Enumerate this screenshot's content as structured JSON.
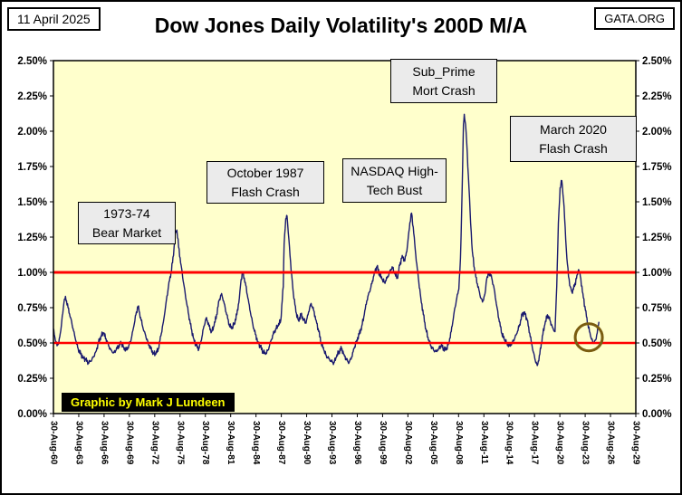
{
  "header": {
    "date": "11 April 2025",
    "title": "Dow Jones Daily Volatility's 200D M/A",
    "site": "GATA.ORG"
  },
  "credit": "Graphic by Mark J Lundeen",
  "annotations": [
    {
      "id": "bear-market",
      "lines": [
        "1973-74",
        "Bear Market"
      ]
    },
    {
      "id": "october-1987",
      "lines": [
        "October 1987",
        "Flash Crash"
      ]
    },
    {
      "id": "nasdaq-bust",
      "lines": [
        "NASDAQ High-",
        "Tech Bust"
      ]
    },
    {
      "id": "subprime",
      "lines": [
        "Sub_Prime",
        "Mort Crash"
      ]
    },
    {
      "id": "march-2020",
      "lines": [
        "March 2020",
        "Flash Crash"
      ]
    }
  ],
  "colors": {
    "plot_bg": "#FFFFCC",
    "series": "#1a1a6e",
    "reference": "#FF0000",
    "axis": "#000000",
    "highlight": "#7a5c10",
    "credit_bg": "#000000",
    "credit_text": "#ffff00"
  },
  "chart_data": {
    "type": "line",
    "title": "Dow Jones Daily Volatility's 200D M/A",
    "xlabel": "",
    "ylabel": "",
    "ylim": [
      0,
      2.5
    ],
    "y_tick_labels": [
      "0.00%",
      "0.25%",
      "0.50%",
      "0.75%",
      "1.00%",
      "1.25%",
      "1.50%",
      "1.75%",
      "2.00%",
      "2.25%",
      "2.50%"
    ],
    "y_tick_values": [
      0,
      0.25,
      0.5,
      0.75,
      1.0,
      1.25,
      1.5,
      1.75,
      2.0,
      2.25,
      2.5
    ],
    "x_range": [
      1960.67,
      2029.67
    ],
    "x_tick_labels": [
      "30-Aug-60",
      "30-Aug-63",
      "30-Aug-66",
      "30-Aug-69",
      "30-Aug-72",
      "30-Aug-75",
      "30-Aug-78",
      "30-Aug-81",
      "30-Aug-84",
      "30-Aug-87",
      "30-Aug-90",
      "30-Aug-93",
      "30-Aug-96",
      "30-Aug-99",
      "30-Aug-02",
      "30-Aug-05",
      "30-Aug-08",
      "30-Aug-11",
      "30-Aug-14",
      "30-Aug-17",
      "30-Aug-20",
      "30-Aug-23",
      "30-Aug-26",
      "30-Aug-29"
    ],
    "x_tick_years": [
      1960.67,
      1963.67,
      1966.67,
      1969.67,
      1972.67,
      1975.67,
      1978.67,
      1981.67,
      1984.67,
      1987.67,
      1990.67,
      1993.67,
      1996.67,
      1999.67,
      2002.67,
      2005.67,
      2008.67,
      2011.67,
      2014.67,
      2017.67,
      2020.67,
      2023.67,
      2026.67,
      2029.67
    ],
    "grid": false,
    "legend": "none",
    "reference_lines": [
      {
        "value": 1.0,
        "color": "#FF0000",
        "width": 3
      },
      {
        "value": 0.5,
        "color": "#FF0000",
        "width": 2.4
      }
    ],
    "highlight_circle": {
      "x": 2024.1,
      "y": 0.54,
      "radius_px": 15,
      "color": "#7a5c10",
      "width": 3
    },
    "series": [
      {
        "name": "Dow Jones Daily Volatility 200D M/A",
        "color": "#1a1a6e",
        "points": [
          [
            1960.7,
            0.6
          ],
          [
            1960.9,
            0.52
          ],
          [
            1961.1,
            0.48
          ],
          [
            1961.3,
            0.5
          ],
          [
            1961.6,
            0.62
          ],
          [
            1961.9,
            0.78
          ],
          [
            1962.1,
            0.83
          ],
          [
            1962.4,
            0.75
          ],
          [
            1962.7,
            0.68
          ],
          [
            1963,
            0.6
          ],
          [
            1963.3,
            0.52
          ],
          [
            1963.6,
            0.46
          ],
          [
            1963.9,
            0.42
          ],
          [
            1964.2,
            0.4
          ],
          [
            1964.5,
            0.38
          ],
          [
            1964.8,
            0.36
          ],
          [
            1965.1,
            0.37
          ],
          [
            1965.4,
            0.4
          ],
          [
            1965.7,
            0.44
          ],
          [
            1966,
            0.5
          ],
          [
            1966.3,
            0.55
          ],
          [
            1966.6,
            0.57
          ],
          [
            1966.9,
            0.53
          ],
          [
            1967.2,
            0.48
          ],
          [
            1967.5,
            0.45
          ],
          [
            1967.8,
            0.43
          ],
          [
            1968.1,
            0.45
          ],
          [
            1968.4,
            0.48
          ],
          [
            1968.7,
            0.5
          ],
          [
            1969,
            0.47
          ],
          [
            1969.3,
            0.45
          ],
          [
            1969.6,
            0.48
          ],
          [
            1969.9,
            0.53
          ],
          [
            1970.2,
            0.62
          ],
          [
            1970.5,
            0.72
          ],
          [
            1970.7,
            0.76
          ],
          [
            1971,
            0.68
          ],
          [
            1971.3,
            0.6
          ],
          [
            1971.6,
            0.55
          ],
          [
            1971.9,
            0.5
          ],
          [
            1972.2,
            0.46
          ],
          [
            1972.5,
            0.43
          ],
          [
            1972.8,
            0.42
          ],
          [
            1973.1,
            0.46
          ],
          [
            1973.4,
            0.55
          ],
          [
            1973.7,
            0.65
          ],
          [
            1974,
            0.78
          ],
          [
            1974.3,
            0.9
          ],
          [
            1974.6,
            1.0
          ],
          [
            1974.9,
            1.12
          ],
          [
            1975.1,
            1.28
          ],
          [
            1975.3,
            1.3
          ],
          [
            1975.5,
            1.18
          ],
          [
            1975.8,
            1.05
          ],
          [
            1976.1,
            0.92
          ],
          [
            1976.4,
            0.8
          ],
          [
            1976.7,
            0.7
          ],
          [
            1977,
            0.6
          ],
          [
            1977.3,
            0.53
          ],
          [
            1977.6,
            0.48
          ],
          [
            1977.9,
            0.46
          ],
          [
            1978.2,
            0.52
          ],
          [
            1978.5,
            0.62
          ],
          [
            1978.8,
            0.68
          ],
          [
            1979.1,
            0.62
          ],
          [
            1979.4,
            0.58
          ],
          [
            1979.7,
            0.62
          ],
          [
            1980,
            0.7
          ],
          [
            1980.3,
            0.8
          ],
          [
            1980.6,
            0.85
          ],
          [
            1980.9,
            0.78
          ],
          [
            1981.2,
            0.7
          ],
          [
            1981.5,
            0.63
          ],
          [
            1981.8,
            0.6
          ],
          [
            1982.1,
            0.64
          ],
          [
            1982.4,
            0.7
          ],
          [
            1982.7,
            0.82
          ],
          [
            1982.9,
            0.95
          ],
          [
            1983.1,
            1.0
          ],
          [
            1983.4,
            0.93
          ],
          [
            1983.7,
            0.82
          ],
          [
            1984,
            0.72
          ],
          [
            1984.3,
            0.63
          ],
          [
            1984.6,
            0.56
          ],
          [
            1984.9,
            0.51
          ],
          [
            1985.2,
            0.47
          ],
          [
            1985.5,
            0.44
          ],
          [
            1985.8,
            0.42
          ],
          [
            1986.1,
            0.45
          ],
          [
            1986.4,
            0.51
          ],
          [
            1986.7,
            0.56
          ],
          [
            1987,
            0.6
          ],
          [
            1987.3,
            0.62
          ],
          [
            1987.6,
            0.66
          ],
          [
            1987.9,
            0.9
          ],
          [
            1988,
            1.2
          ],
          [
            1988.2,
            1.38
          ],
          [
            1988.35,
            1.4
          ],
          [
            1988.5,
            1.28
          ],
          [
            1988.7,
            1.12
          ],
          [
            1988.9,
            0.98
          ],
          [
            1989.1,
            0.85
          ],
          [
            1989.4,
            0.72
          ],
          [
            1989.7,
            0.66
          ],
          [
            1990,
            0.7
          ],
          [
            1990.3,
            0.67
          ],
          [
            1990.6,
            0.64
          ],
          [
            1990.9,
            0.72
          ],
          [
            1991.2,
            0.78
          ],
          [
            1991.5,
            0.73
          ],
          [
            1991.8,
            0.66
          ],
          [
            1992.1,
            0.58
          ],
          [
            1992.4,
            0.5
          ],
          [
            1992.7,
            0.45
          ],
          [
            1993,
            0.41
          ],
          [
            1993.3,
            0.39
          ],
          [
            1993.6,
            0.37
          ],
          [
            1993.9,
            0.36
          ],
          [
            1994.2,
            0.4
          ],
          [
            1994.5,
            0.44
          ],
          [
            1994.8,
            0.46
          ],
          [
            1995.1,
            0.42
          ],
          [
            1995.4,
            0.38
          ],
          [
            1995.7,
            0.36
          ],
          [
            1996,
            0.4
          ],
          [
            1996.3,
            0.46
          ],
          [
            1996.6,
            0.52
          ],
          [
            1996.9,
            0.56
          ],
          [
            1997.2,
            0.62
          ],
          [
            1997.5,
            0.7
          ],
          [
            1997.8,
            0.8
          ],
          [
            1998.1,
            0.86
          ],
          [
            1998.4,
            0.92
          ],
          [
            1998.7,
            1.0
          ],
          [
            1999,
            1.04
          ],
          [
            1999.3,
            0.99
          ],
          [
            1999.6,
            0.95
          ],
          [
            1999.9,
            0.93
          ],
          [
            2000.2,
            0.96
          ],
          [
            2000.5,
            1.0
          ],
          [
            2000.8,
            1.04
          ],
          [
            2001.1,
            0.99
          ],
          [
            2001.4,
            0.96
          ],
          [
            2001.7,
            1.05
          ],
          [
            2002,
            1.12
          ],
          [
            2002.3,
            1.08
          ],
          [
            2002.6,
            1.18
          ],
          [
            2002.9,
            1.35
          ],
          [
            2003.1,
            1.42
          ],
          [
            2003.3,
            1.32
          ],
          [
            2003.6,
            1.12
          ],
          [
            2003.9,
            0.96
          ],
          [
            2004.2,
            0.82
          ],
          [
            2004.5,
            0.7
          ],
          [
            2004.8,
            0.6
          ],
          [
            2005.1,
            0.52
          ],
          [
            2005.4,
            0.48
          ],
          [
            2005.7,
            0.45
          ],
          [
            2006,
            0.44
          ],
          [
            2006.3,
            0.46
          ],
          [
            2006.6,
            0.48
          ],
          [
            2006.9,
            0.46
          ],
          [
            2007.2,
            0.45
          ],
          [
            2007.5,
            0.5
          ],
          [
            2007.8,
            0.58
          ],
          [
            2008.1,
            0.7
          ],
          [
            2008.4,
            0.8
          ],
          [
            2008.7,
            0.88
          ],
          [
            2008.9,
            1.1
          ],
          [
            2009.1,
            1.6
          ],
          [
            2009.25,
            2.05
          ],
          [
            2009.35,
            2.12
          ],
          [
            2009.5,
            2.05
          ],
          [
            2009.7,
            1.85
          ],
          [
            2009.9,
            1.6
          ],
          [
            2010.1,
            1.35
          ],
          [
            2010.3,
            1.15
          ],
          [
            2010.6,
            1.0
          ],
          [
            2010.9,
            0.92
          ],
          [
            2011.2,
            0.84
          ],
          [
            2011.5,
            0.79
          ],
          [
            2011.8,
            0.85
          ],
          [
            2012,
            0.95
          ],
          [
            2012.3,
            1.0
          ],
          [
            2012.6,
            0.96
          ],
          [
            2012.9,
            0.88
          ],
          [
            2013.2,
            0.76
          ],
          [
            2013.5,
            0.65
          ],
          [
            2013.8,
            0.57
          ],
          [
            2014.1,
            0.52
          ],
          [
            2014.4,
            0.5
          ],
          [
            2014.7,
            0.48
          ],
          [
            2015,
            0.5
          ],
          [
            2015.3,
            0.53
          ],
          [
            2015.6,
            0.57
          ],
          [
            2015.9,
            0.63
          ],
          [
            2016.2,
            0.7
          ],
          [
            2016.5,
            0.72
          ],
          [
            2016.8,
            0.66
          ],
          [
            2017.1,
            0.57
          ],
          [
            2017.4,
            0.47
          ],
          [
            2017.7,
            0.39
          ],
          [
            2018,
            0.34
          ],
          [
            2018.3,
            0.42
          ],
          [
            2018.6,
            0.55
          ],
          [
            2018.9,
            0.63
          ],
          [
            2019.2,
            0.7
          ],
          [
            2019.5,
            0.66
          ],
          [
            2019.8,
            0.61
          ],
          [
            2020.1,
            0.58
          ],
          [
            2020.3,
            0.9
          ],
          [
            2020.5,
            1.35
          ],
          [
            2020.7,
            1.6
          ],
          [
            2020.9,
            1.65
          ],
          [
            2021.1,
            1.52
          ],
          [
            2021.3,
            1.32
          ],
          [
            2021.5,
            1.1
          ],
          [
            2021.7,
            0.97
          ],
          [
            2021.9,
            0.9
          ],
          [
            2022.1,
            0.86
          ],
          [
            2022.4,
            0.9
          ],
          [
            2022.7,
            0.98
          ],
          [
            2022.9,
            1.02
          ],
          [
            2023.1,
            0.97
          ],
          [
            2023.4,
            0.85
          ],
          [
            2023.7,
            0.73
          ],
          [
            2024,
            0.63
          ],
          [
            2024.3,
            0.55
          ],
          [
            2024.6,
            0.5
          ],
          [
            2024.9,
            0.52
          ],
          [
            2025.1,
            0.57
          ],
          [
            2025.3,
            0.65
          ]
        ]
      }
    ]
  }
}
